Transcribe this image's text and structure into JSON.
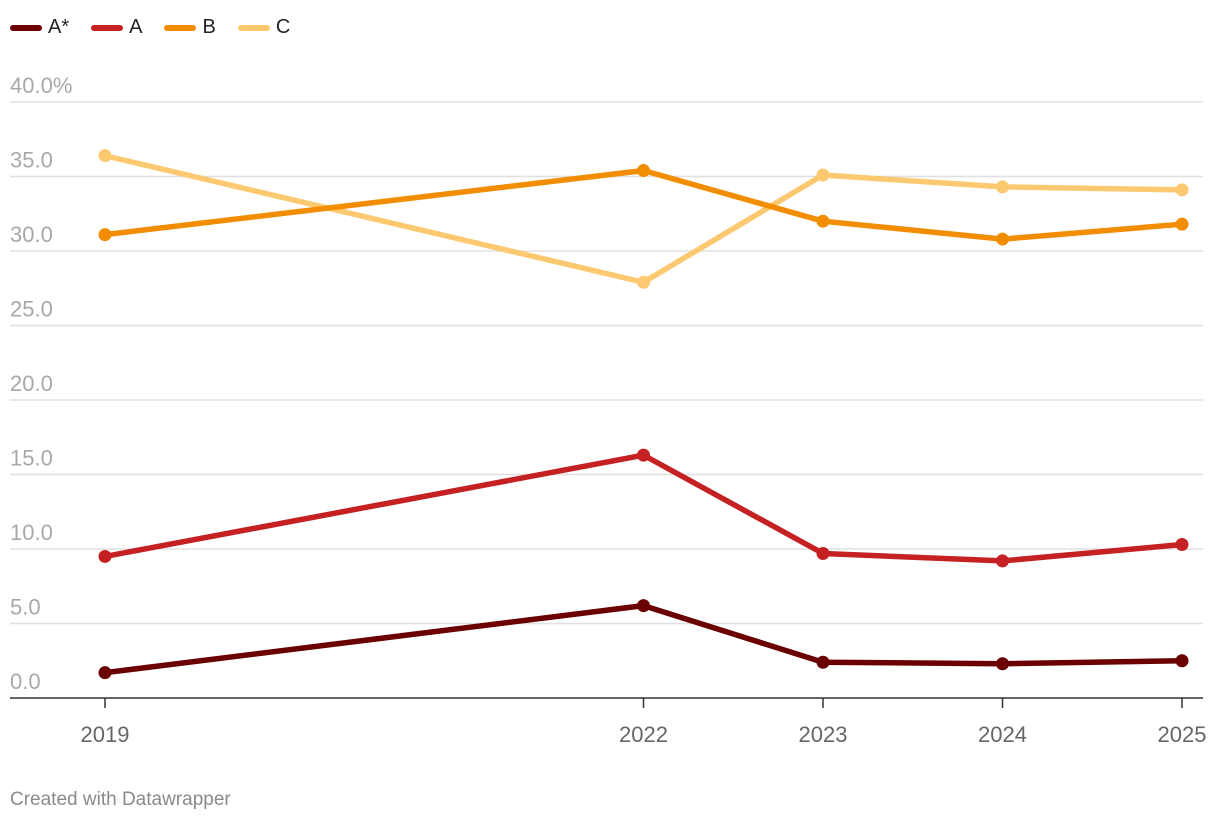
{
  "footer": "Created with Datawrapper",
  "chart_data": {
    "type": "line",
    "title": "",
    "xlabel": "",
    "ylabel": "",
    "categories": [
      "2019",
      "2022",
      "2023",
      "2024",
      "2025"
    ],
    "x": [
      2019,
      2022,
      2023,
      2024,
      2025
    ],
    "ylim": [
      0,
      40
    ],
    "y_ticks": [
      "0.0",
      "5.0",
      "10.0",
      "15.0",
      "20.0",
      "25.0",
      "30.0",
      "35.0",
      "40.0%"
    ],
    "grid": true,
    "legend": "top-left",
    "series": [
      {
        "name": "A*",
        "color": "#6b0000",
        "values": [
          1.7,
          6.2,
          2.4,
          2.3,
          2.5
        ]
      },
      {
        "name": "A",
        "color": "#c62122",
        "values": [
          9.5,
          16.3,
          9.7,
          9.2,
          10.3
        ]
      },
      {
        "name": "B",
        "color": "#f28d00",
        "values": [
          31.1,
          35.4,
          32.0,
          30.8,
          31.8
        ]
      },
      {
        "name": "C",
        "color": "#fcc870",
        "values": [
          36.4,
          27.9,
          35.1,
          34.3,
          34.1
        ]
      }
    ]
  }
}
